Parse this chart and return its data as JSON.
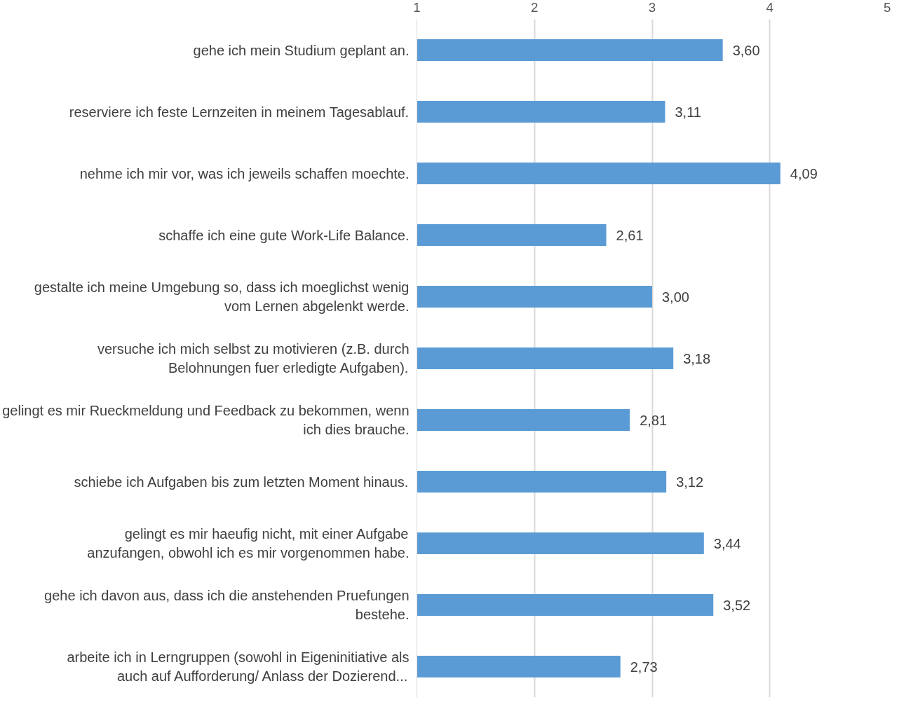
{
  "chart_data": {
    "type": "bar",
    "orientation": "horizontal",
    "categories": [
      "gehe ich mein Studium geplant an.",
      "reserviere ich feste Lernzeiten in meinem Tagesablauf.",
      "nehme ich mir vor, was ich jeweils schaffen moechte.",
      "schaffe ich eine gute Work-Life Balance.",
      "gestalte ich meine Umgebung so, dass ich moeglichst wenig vom Lernen abgelenkt werde.",
      "versuche ich mich selbst zu motivieren (z.B. durch Belohnungen fuer erledigte Aufgaben).",
      "gelingt es mir Rueckmeldung und Feedback zu bekommen, wenn ich dies brauche.",
      "schiebe ich Aufgaben bis zum letzten Moment hinaus.",
      "gelingt es mir haeufig nicht, mit einer Aufgabe anzufangen, obwohl ich es mir vorgenommen habe.",
      "gehe ich davon aus, dass ich die anstehenden Pruefungen bestehe.",
      "arbeite ich in Lerngruppen (sowohl in Eigeninitiative als auch auf Aufforderung/ Anlass der Dozierend..."
    ],
    "values": [
      3.6,
      3.11,
      4.09,
      2.61,
      3.0,
      3.18,
      2.81,
      3.12,
      3.44,
      3.52,
      2.73
    ],
    "value_labels": [
      "3,60",
      "3,11",
      "4,09",
      "2,61",
      "3,00",
      "3,18",
      "2,81",
      "3,12",
      "3,44",
      "3,52",
      "2,73"
    ],
    "color": "#5b9bd5",
    "xlim": [
      1,
      5
    ],
    "xticks": [
      1,
      2,
      3,
      4,
      5
    ],
    "grid": "x"
  }
}
